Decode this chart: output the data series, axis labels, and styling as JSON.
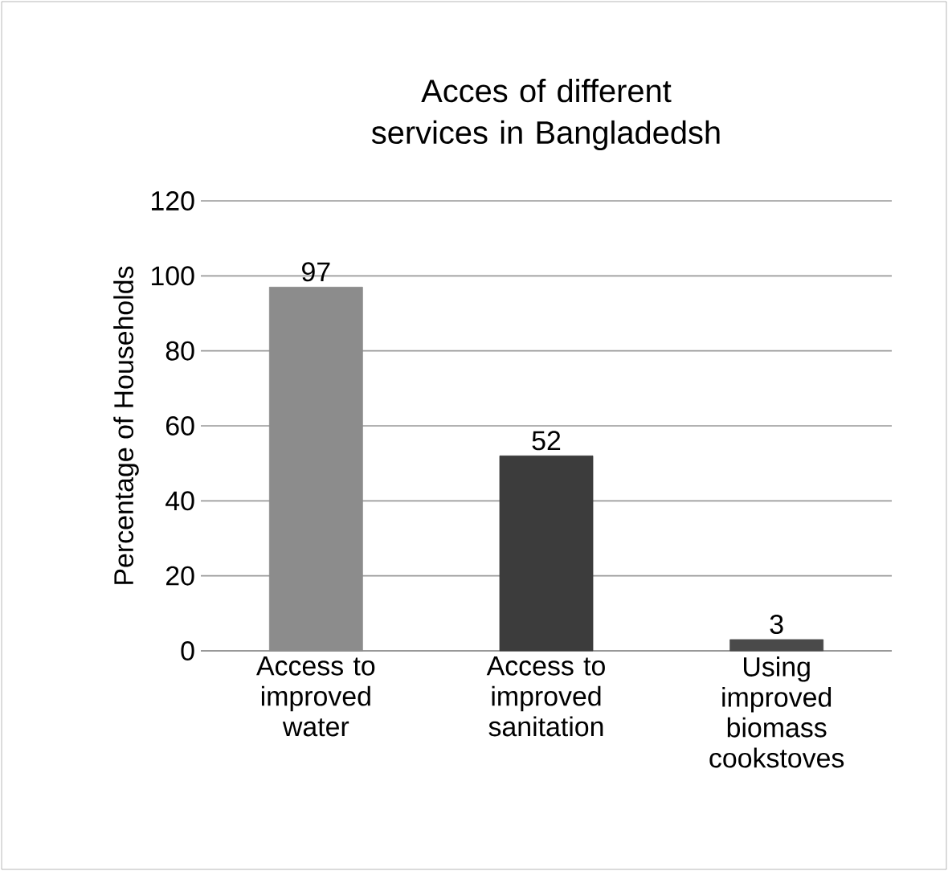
{
  "chart_data": {
    "type": "bar",
    "title": "Acces of different services in Bangladedsh",
    "ylabel": "Percentage of Households",
    "categories": [
      "Access to improved water",
      "Access to improved sanitation",
      "Using improved biomass cookstoves"
    ],
    "values": [
      97,
      52,
      3
    ],
    "colors": [
      "#8c8c8c",
      "#3c3c3c",
      "#4a4a4a"
    ],
    "ylim": [
      0,
      120
    ],
    "yticks": [
      0,
      20,
      40,
      60,
      80,
      100,
      120
    ],
    "grid": "y",
    "data_labels": true
  }
}
